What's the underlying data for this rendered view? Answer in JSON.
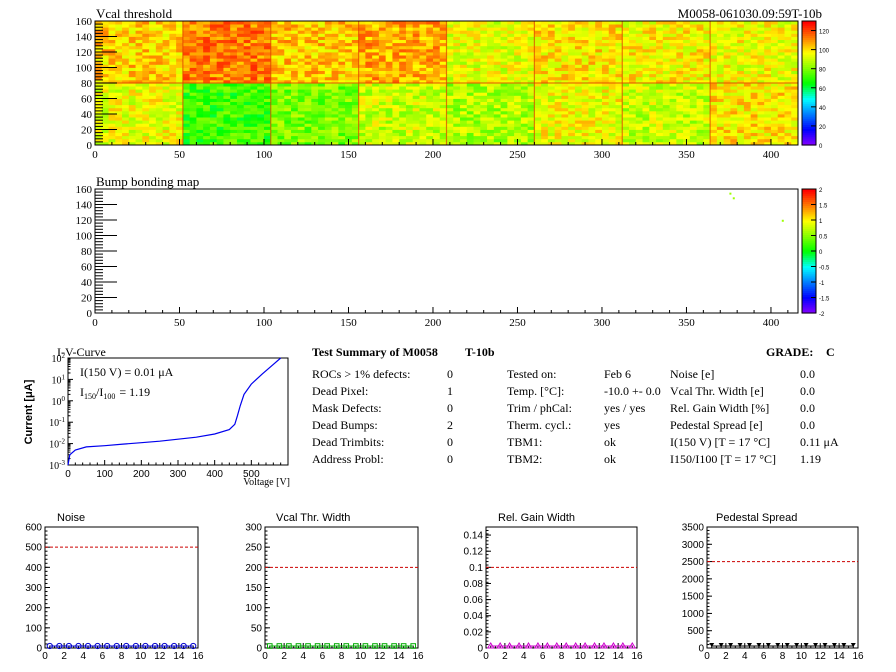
{
  "header": {
    "vcal_title": "Vcal threshold",
    "module_id": "M0058-061030.09:59T-10b",
    "bump_title": "Bump bonding map"
  },
  "heatmap_axes": {
    "x_ticks": [
      "0",
      "50",
      "100",
      "150",
      "200",
      "250",
      "300",
      "350",
      "400"
    ],
    "y_ticks": [
      "0",
      "20",
      "40",
      "60",
      "80",
      "100",
      "120",
      "140",
      "160"
    ],
    "vcal_scale_ticks": [
      "0",
      "20",
      "40",
      "60",
      "80",
      "100",
      "120"
    ],
    "bump_scale_ticks": [
      "-2",
      "-1.5",
      "-1",
      "-0.5",
      "0",
      "0.5",
      "1",
      "1.5",
      "2"
    ]
  },
  "iv": {
    "title": "I-V-Curve",
    "ylabel": "Current [μA]",
    "xlabel": "Voltage [V]",
    "x_ticks": [
      "0",
      "100",
      "200",
      "300",
      "400",
      "500"
    ],
    "y_exp_ticks": [
      "-3",
      "-2",
      "-1",
      "0",
      "1",
      "2"
    ],
    "annot1": "I(150 V) = 0.01 μA",
    "annot2_prefix": "I",
    "annot2_sub1": "150",
    "annot2_mid": "/I",
    "annot2_sub2": "100",
    "annot2_value": "=  1.19"
  },
  "summary": {
    "title": "Test Summary of M0058",
    "subtitle": "T-10b",
    "grade_label": "GRADE:",
    "grade_value": "C",
    "left": [
      {
        "label": "ROCs > 1% defects:",
        "value": "0"
      },
      {
        "label": "Dead Pixel:",
        "value": "1"
      },
      {
        "label": "Mask Defects:",
        "value": "0"
      },
      {
        "label": "Dead Bumps:",
        "value": "2"
      },
      {
        "label": "Dead Trimbits:",
        "value": "0"
      },
      {
        "label": "Address Probl:",
        "value": "0"
      }
    ],
    "mid": [
      {
        "label": "Tested on:",
        "value": "Feb 6"
      },
      {
        "label": "Temp. [°C]:",
        "value": "-10.0 +- 0.0"
      },
      {
        "label": "Trim / phCal:",
        "value": "yes / yes"
      },
      {
        "label": "Therm. cycl.:",
        "value": "yes"
      },
      {
        "label": "TBM1:",
        "value": "ok"
      },
      {
        "label": "TBM2:",
        "value": "ok"
      }
    ],
    "right": [
      {
        "label": "Noise [e]",
        "value": "0.0"
      },
      {
        "label": "Vcal Thr. Width [e]",
        "value": "0.0"
      },
      {
        "label": "Rel. Gain Width [%]",
        "value": "0.0"
      },
      {
        "label": "Pedestal Spread [e]",
        "value": "0.0"
      },
      {
        "label": "I(150 V)  [T = 17 °C]",
        "value": "0.11 μA"
      },
      {
        "label": "I150/I100  [T = 17 °C]",
        "value": "1.19"
      }
    ]
  },
  "chart_data": [
    {
      "type": "heatmap",
      "title": "Vcal threshold",
      "xlim": [
        0,
        416
      ],
      "ylim": [
        0,
        160
      ],
      "zlim": [
        0,
        130
      ],
      "roc_grid": {
        "cols": 8,
        "rows": 2,
        "col_width": 52,
        "row_height": 80
      },
      "roc_mean_vcal": [
        [
          95,
          72,
          80,
          90,
          86,
          96,
          90,
          100
        ],
        [
          103,
          114,
          104,
          108,
          94,
          100,
          98,
          96
        ]
      ]
    },
    {
      "type": "heatmap",
      "title": "Bump bonding map",
      "xlim": [
        0,
        416
      ],
      "ylim": [
        0,
        160
      ],
      "zlim": [
        -2,
        2
      ],
      "points": [
        {
          "x": 376,
          "y": 154,
          "z": 0.6
        },
        {
          "x": 378,
          "y": 148,
          "z": 0.6
        },
        {
          "x": 407,
          "y": 119,
          "z": 0.6
        }
      ]
    },
    {
      "type": "line",
      "title": "I-V-Curve",
      "xlabel": "Voltage [V]",
      "ylabel": "Current [μA]",
      "xlim": [
        0,
        600
      ],
      "ylim": [
        0.001,
        100
      ],
      "log_y": true,
      "x": [
        0,
        5,
        20,
        50,
        100,
        150,
        200,
        250,
        300,
        350,
        400,
        440,
        455,
        462,
        470,
        480,
        500,
        530,
        560,
        580
      ],
      "values": [
        0.001,
        0.003,
        0.005,
        0.007,
        0.008,
        0.0095,
        0.011,
        0.013,
        0.016,
        0.02,
        0.028,
        0.045,
        0.08,
        0.2,
        0.6,
        2.0,
        6.0,
        18,
        50,
        100
      ]
    },
    {
      "type": "scatter",
      "title": "Noise",
      "xlim": [
        0,
        16
      ],
      "ylim": [
        0,
        600
      ],
      "y_ticks": [
        "0",
        "100",
        "200",
        "300",
        "400",
        "500",
        "600"
      ],
      "x_ticks": [
        "0",
        "2",
        "4",
        "6",
        "8",
        "10",
        "12",
        "14",
        "16"
      ],
      "threshold": 500,
      "marker": "circle",
      "color": "#0000cc",
      "x": [
        0,
        1,
        2,
        3,
        4,
        5,
        6,
        7,
        8,
        9,
        10,
        11,
        12,
        13,
        14,
        15
      ],
      "values": [
        0,
        0,
        0,
        0,
        0,
        0,
        0,
        0,
        0,
        0,
        0,
        0,
        0,
        0,
        0,
        0
      ]
    },
    {
      "type": "scatter",
      "title": "Vcal Thr. Width",
      "xlim": [
        0,
        16
      ],
      "ylim": [
        0,
        300
      ],
      "y_ticks": [
        "0",
        "50",
        "100",
        "150",
        "200",
        "250",
        "300"
      ],
      "x_ticks": [
        "0",
        "2",
        "4",
        "6",
        "8",
        "10",
        "12",
        "14",
        "16"
      ],
      "threshold": 200,
      "marker": "square",
      "color": "#00aa00",
      "x": [
        0,
        1,
        2,
        3,
        4,
        5,
        6,
        7,
        8,
        9,
        10,
        11,
        12,
        13,
        14,
        15
      ],
      "values": [
        0,
        0,
        0,
        0,
        0,
        0,
        0,
        0,
        0,
        0,
        0,
        0,
        0,
        0,
        0,
        0
      ]
    },
    {
      "type": "scatter",
      "title": "Rel. Gain Width",
      "xlim": [
        0,
        16
      ],
      "ylim": [
        0,
        0.15
      ],
      "y_ticks": [
        "0",
        "0.02",
        "0.04",
        "0.06",
        "0.08",
        "0.1",
        "0.12",
        "0.14"
      ],
      "x_ticks": [
        "0",
        "2",
        "4",
        "6",
        "8",
        "10",
        "12",
        "14",
        "16"
      ],
      "threshold": 0.1,
      "marker": "triangle",
      "color": "#cc00cc",
      "x": [
        0,
        1,
        2,
        3,
        4,
        5,
        6,
        7,
        8,
        9,
        10,
        11,
        12,
        13,
        14,
        15
      ],
      "values": [
        0,
        0,
        0,
        0,
        0,
        0,
        0,
        0,
        0,
        0,
        0,
        0,
        0,
        0,
        0,
        0
      ]
    },
    {
      "type": "scatter",
      "title": "Pedestal Spread",
      "xlim": [
        0,
        16
      ],
      "ylim": [
        0,
        3500
      ],
      "y_ticks": [
        "0",
        "500",
        "1000",
        "1500",
        "2000",
        "2500",
        "3000",
        "3500"
      ],
      "x_ticks": [
        "0",
        "2",
        "4",
        "6",
        "8",
        "10",
        "12",
        "14",
        "16"
      ],
      "threshold": 2500,
      "marker": "triangle-down",
      "color": "#000000",
      "x": [
        0,
        1,
        2,
        3,
        4,
        5,
        6,
        7,
        8,
        9,
        10,
        11,
        12,
        13,
        14,
        15
      ],
      "values": [
        0,
        0,
        0,
        0,
        0,
        0,
        0,
        0,
        0,
        0,
        0,
        0,
        0,
        0,
        0,
        0
      ]
    }
  ]
}
